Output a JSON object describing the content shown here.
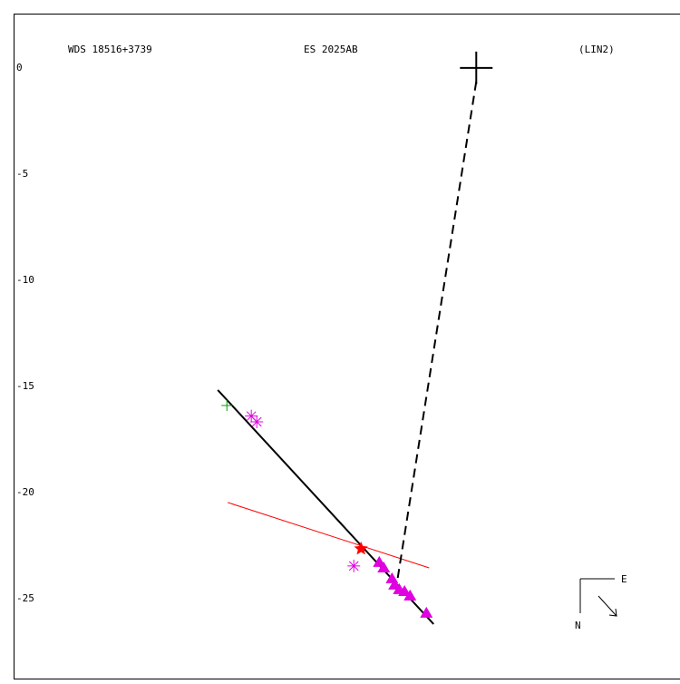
{
  "chart_data": {
    "type": "scatter",
    "labels": [
      "WDS 18516+3739",
      "ES 2025AB",
      "(LIN2)"
    ],
    "compass": {
      "east": "E",
      "north": "N"
    },
    "xlim": [
      -21.8,
      9.6
    ],
    "ylim": [
      -28.85,
      2.56
    ],
    "yticks": [
      0,
      -5,
      -10,
      -15,
      -20,
      -25
    ],
    "series": [
      {
        "marker": "bigplus",
        "color": "#000000",
        "x": [
          0
        ],
        "y": [
          0
        ]
      },
      {
        "marker": "plus",
        "color": "#00a000",
        "x": [
          -11.75
        ],
        "y": [
          -15.9
        ]
      },
      {
        "marker": "asterisk",
        "color": "#e000e0",
        "x": [
          -10.6,
          -10.34,
          -5.77
        ],
        "y": [
          -16.4,
          -16.67,
          -23.46
        ]
      },
      {
        "marker": "star",
        "color": "#ff0000",
        "x": [
          -5.43
        ],
        "y": [
          -22.65
        ]
      },
      {
        "marker": "triangle",
        "color": "#e000e0",
        "x": [
          -4.57,
          -4.36,
          -3.97,
          -3.85,
          -3.63,
          -3.38,
          -3.12,
          -2.35
        ],
        "y": [
          -23.29,
          -23.55,
          -24.06,
          -24.36,
          -24.57,
          -24.66,
          -24.87,
          -25.68
        ]
      }
    ],
    "lines": [
      {
        "color": "#000000",
        "dash": false,
        "width": 2,
        "x": [
          -12.18,
          -2.01
        ],
        "y": [
          -15.17,
          -26.2
        ]
      },
      {
        "color": "#ff0000",
        "dash": false,
        "width": 1,
        "x": [
          -11.71,
          -2.22
        ],
        "y": [
          -20.47,
          -23.55
        ]
      },
      {
        "color": "#000000",
        "dash": true,
        "width": 2,
        "x": [
          0,
          -3.72
        ],
        "y": [
          -0.64,
          -24.15
        ]
      }
    ]
  }
}
